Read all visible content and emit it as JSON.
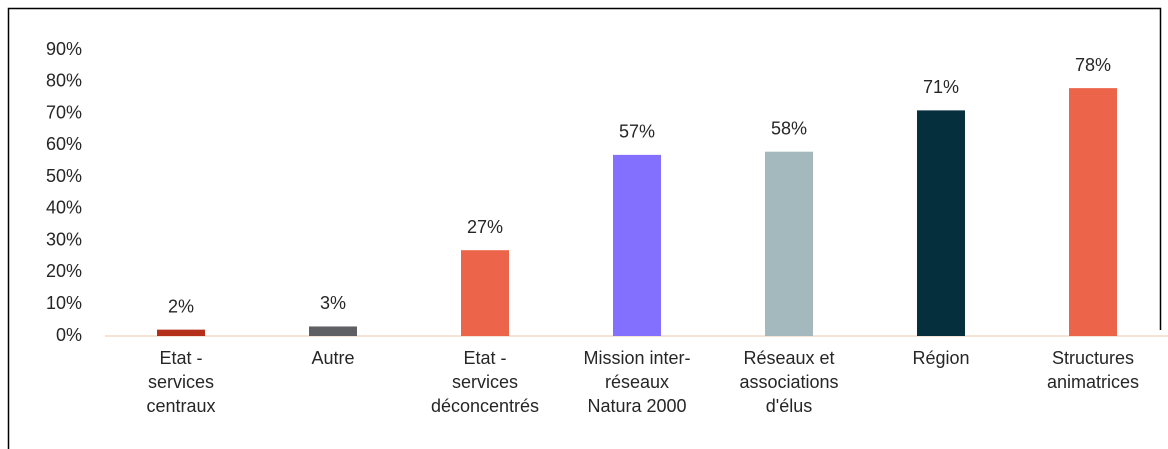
{
  "chart_data": {
    "type": "bar",
    "categories": [
      [
        "Etat -",
        "services",
        "centraux"
      ],
      [
        "Autre"
      ],
      [
        "Etat -",
        "services",
        "déconcentrés"
      ],
      [
        "Mission inter-",
        "réseaux",
        "Natura 2000"
      ],
      [
        "Réseaux et",
        "associations",
        "d'élus"
      ],
      [
        "Région"
      ],
      [
        "Structures",
        "animatrices"
      ]
    ],
    "values": [
      2,
      3,
      27,
      57,
      58,
      71,
      78
    ],
    "value_labels": [
      "2%",
      "3%",
      "27%",
      "57%",
      "58%",
      "71%",
      "78%"
    ],
    "colors": [
      "#b5301a",
      "#5f6064",
      "#ec6449",
      "#8470ff",
      "#a3b9bd",
      "#062f3e",
      "#ec6449"
    ],
    "ylim": [
      0,
      90
    ],
    "yticks": [
      {
        "value": 0,
        "label": "0%"
      },
      {
        "value": 10,
        "label": "10%"
      },
      {
        "value": 20,
        "label": "20%"
      },
      {
        "value": 30,
        "label": "30%"
      },
      {
        "value": 40,
        "label": "40%"
      },
      {
        "value": 50,
        "label": "50%"
      },
      {
        "value": 60,
        "label": "60%"
      },
      {
        "value": 70,
        "label": "70%"
      },
      {
        "value": 80,
        "label": "80%"
      },
      {
        "value": 90,
        "label": "90%"
      }
    ],
    "grid": false
  }
}
